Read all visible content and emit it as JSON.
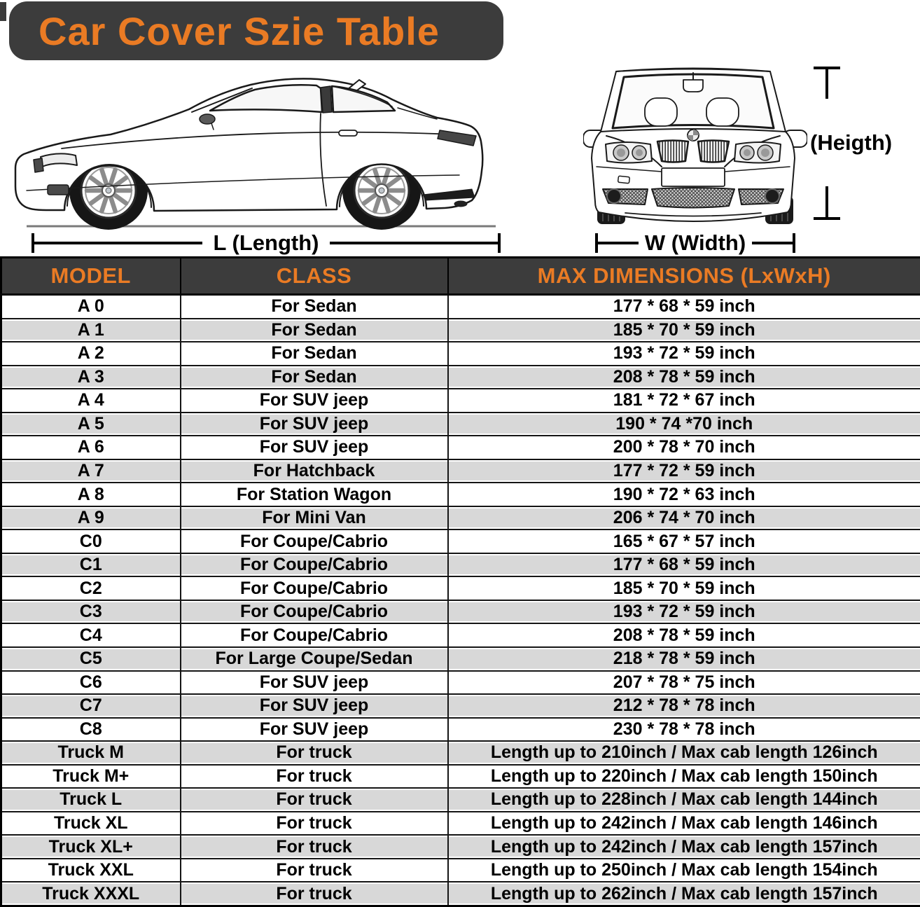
{
  "title": "Car Cover Szie Table",
  "diagram": {
    "length_label": "L (Length)",
    "width_label": "W (Width)",
    "height_label": "(Heigth)",
    "icons": {
      "side_car": "car-side-view",
      "front_car": "car-front-view"
    }
  },
  "table": {
    "headers": [
      "MODEL",
      "CLASS",
      "MAX DIMENSIONS (LxWxH)"
    ],
    "rows": [
      [
        "A 0",
        "For Sedan",
        "177 * 68 * 59 inch"
      ],
      [
        "A 1",
        "For Sedan",
        "185 * 70 * 59 inch"
      ],
      [
        "A 2",
        "For Sedan",
        "193 * 72 * 59 inch"
      ],
      [
        "A 3",
        "For Sedan",
        "208 * 78 * 59 inch"
      ],
      [
        "A 4",
        "For SUV jeep",
        "181 * 72 * 67 inch"
      ],
      [
        "A 5",
        "For SUV jeep",
        "190 * 74 *70 inch"
      ],
      [
        "A 6",
        "For SUV jeep",
        "200 * 78 * 70 inch"
      ],
      [
        "A 7",
        "For Hatchback",
        "177 * 72 * 59 inch"
      ],
      [
        "A 8",
        "For Station Wagon",
        "190 * 72 * 63 inch"
      ],
      [
        "A 9",
        "For Mini Van",
        "206 * 74 * 70 inch"
      ],
      [
        "C0",
        "For Coupe/Cabrio",
        "165 * 67 * 57 inch"
      ],
      [
        "C1",
        "For Coupe/Cabrio",
        "177 * 68 * 59 inch"
      ],
      [
        "C2",
        "For Coupe/Cabrio",
        "185 * 70 * 59 inch"
      ],
      [
        "C3",
        "For Coupe/Cabrio",
        "193 * 72 * 59 inch"
      ],
      [
        "C4",
        "For Coupe/Cabrio",
        "208 * 78 * 59 inch"
      ],
      [
        "C5",
        "For Large Coupe/Sedan",
        "218 * 78 * 59 inch"
      ],
      [
        "C6",
        "For SUV jeep",
        "207 * 78 * 75 inch"
      ],
      [
        "C7",
        "For SUV jeep",
        "212 * 78 * 78 inch"
      ],
      [
        "C8",
        "For SUV jeep",
        "230 * 78 * 78 inch"
      ],
      [
        "Truck M",
        "For truck",
        "Length up to 210inch / Max cab length 126inch"
      ],
      [
        "Truck M+",
        "For truck",
        "Length up to 220inch / Max cab length 150inch"
      ],
      [
        "Truck L",
        "For truck",
        "Length up to 228inch / Max cab length 144inch"
      ],
      [
        "Truck XL",
        "For truck",
        "Length up to 242inch / Max cab length 146inch"
      ],
      [
        "Truck XL+",
        "For truck",
        "Length up to 242inch / Max cab length 157inch"
      ],
      [
        "Truck XXL",
        "For truck",
        "Length up to 250inch / Max cab length 154inch"
      ],
      [
        "Truck XXXL",
        "For truck",
        "Length up to 262inch / Max cab length 157inch"
      ]
    ]
  },
  "colors": {
    "accent_orange": "#EA7B24",
    "banner_dark": "#3C3C3C",
    "row_alt_gray": "#D8D8D8"
  }
}
